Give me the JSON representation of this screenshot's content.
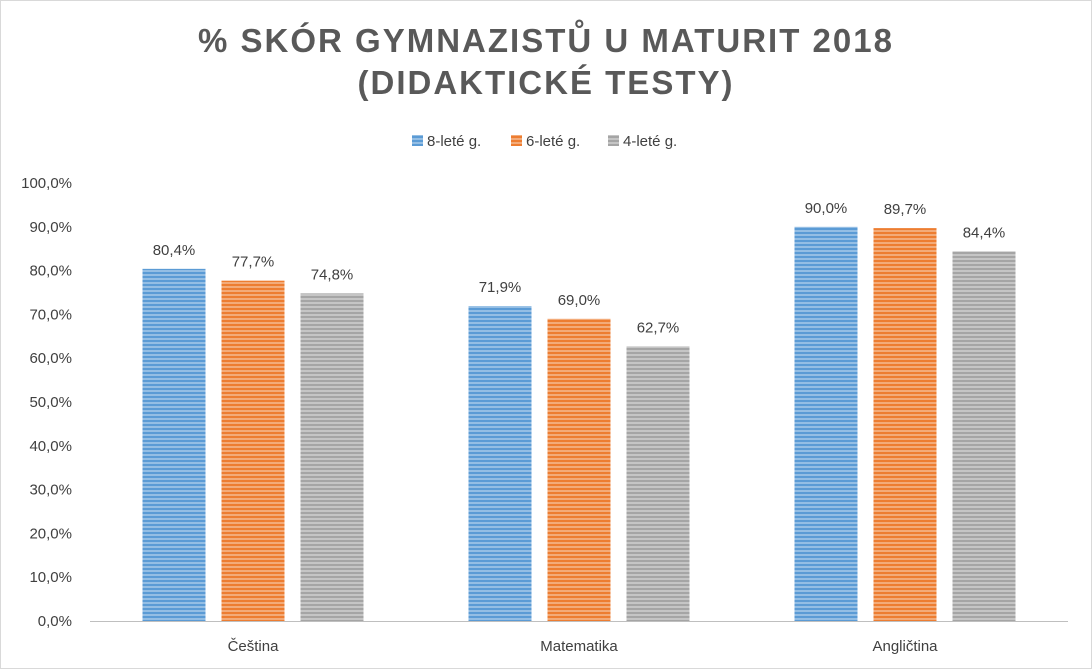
{
  "chart_data": {
    "type": "bar",
    "title_lines": [
      "% SKÓR GYMNAZISTŮ U MATURIT 2018",
      "(DIDAKTICKÉ TESTY)"
    ],
    "categories": [
      "Čeština",
      "Matematika",
      "Angličtina"
    ],
    "series": [
      {
        "name": "8-leté g.",
        "color": "#5b9bd5",
        "values": [
          80.4,
          71.9,
          90.0
        ],
        "labels": [
          "80,4%",
          "71,9%",
          "90,0%"
        ]
      },
      {
        "name": "6-leté g.",
        "color": "#ed7d31",
        "values": [
          77.7,
          69.0,
          89.7
        ],
        "labels": [
          "77,7%",
          "69,0%",
          "89,7%"
        ]
      },
      {
        "name": "4-leté g.",
        "color": "#a5a5a5",
        "values": [
          74.8,
          62.7,
          84.4
        ],
        "labels": [
          "74,8%",
          "62,7%",
          "84,4%"
        ]
      }
    ],
    "ylim": [
      0,
      100
    ],
    "yticks": [
      0,
      10,
      20,
      30,
      40,
      50,
      60,
      70,
      80,
      90,
      100
    ],
    "ytick_labels": [
      "0,0%",
      "10,0%",
      "20,0%",
      "30,0%",
      "40,0%",
      "50,0%",
      "60,0%",
      "70,0%",
      "80,0%",
      "90,0%",
      "100,0%"
    ],
    "legend_position": "top",
    "grid": false,
    "bar_pattern": "horizontal-stripes"
  }
}
